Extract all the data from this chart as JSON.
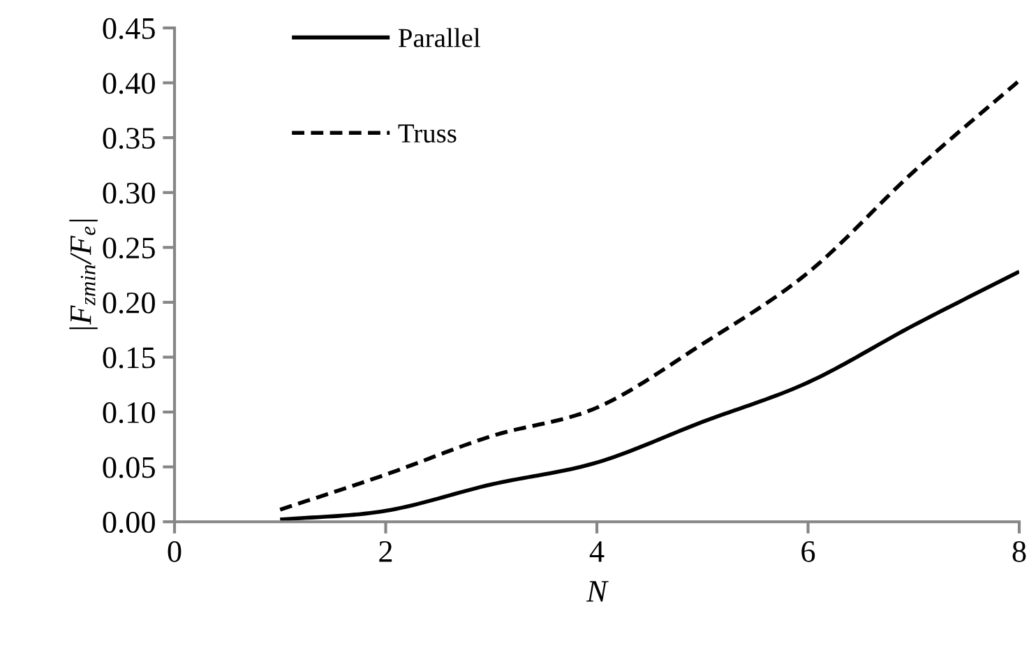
{
  "chart_data": {
    "type": "line",
    "xlabel": "N",
    "ylabel": "|F$_{zmin}$/F$_{e}$|",
    "xlim": [
      0,
      8
    ],
    "xticks": [
      0,
      2,
      4,
      6,
      8
    ],
    "ylim": [
      0,
      0.45
    ],
    "yticks": [
      {
        "value": 0,
        "label": "0.00"
      },
      {
        "value": 0.05,
        "label": "0.05"
      },
      {
        "value": 0.1,
        "label": "0.10"
      },
      {
        "value": 0.15,
        "label": "0.15"
      },
      {
        "value": 0.2,
        "label": "0.20"
      },
      {
        "value": 0.25,
        "label": "0.25"
      },
      {
        "value": 0.3,
        "label": "0.30"
      },
      {
        "value": 0.35,
        "label": "0.35"
      },
      {
        "value": 0.4,
        "label": "0.40"
      },
      {
        "value": 0.45,
        "label": "0.45"
      }
    ],
    "x": [
      1,
      2,
      3,
      4,
      5,
      6,
      7,
      8
    ],
    "series": [
      {
        "name": "Parallel",
        "color": "#000000",
        "line_style": "solid",
        "values": [
          0.002,
          0.01,
          0.034,
          0.054,
          0.091,
          0.127,
          0.179,
          0.228
        ]
      },
      {
        "name": "Truss",
        "color": "#000000",
        "line_style": "dashed",
        "values": [
          0.011,
          0.043,
          0.078,
          0.104,
          0.162,
          0.227,
          0.319,
          0.402
        ]
      }
    ],
    "grid": false,
    "legend": "top left",
    "marker": "none"
  }
}
